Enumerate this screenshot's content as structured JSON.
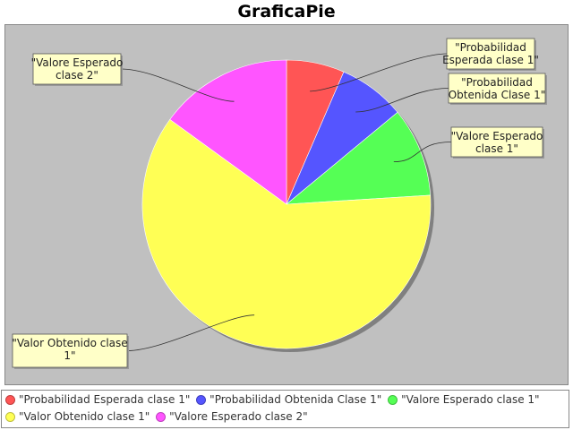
{
  "chart_data": {
    "type": "pie",
    "title": "GraficaPie",
    "legend_position": "bottom",
    "slices": [
      {
        "label": "\"Probabilidad Esperada clase 1\"",
        "value": 6.5,
        "color": "#ff5555"
      },
      {
        "label": "\"Probabilidad Obtenida Clase 1\"",
        "value": 7.5,
        "color": "#5555ff"
      },
      {
        "label": "\"Valore Esperado clase 1\"",
        "value": 10,
        "color": "#55ff55"
      },
      {
        "label": "\"Valor Obtenido clase 1\"",
        "value": 61,
        "color": "#ffff55"
      },
      {
        "label": "\"Valore Esperado clase 2\"",
        "value": 15,
        "color": "#ff55ff"
      }
    ],
    "callouts": [
      {
        "lines": [
          "\"Probabilidad",
          "Esperada clase 1\""
        ]
      },
      {
        "lines": [
          "\"Probabilidad",
          "Obtenida Clase 1\""
        ]
      },
      {
        "lines": [
          "\"Valore Esperado",
          "clase 1\""
        ]
      },
      {
        "lines": [
          "\"Valor Obtenido clase",
          "1\""
        ]
      },
      {
        "lines": [
          "\"Valore Esperado",
          "clase 2\""
        ]
      }
    ],
    "background_color": "#c0c0c0"
  }
}
